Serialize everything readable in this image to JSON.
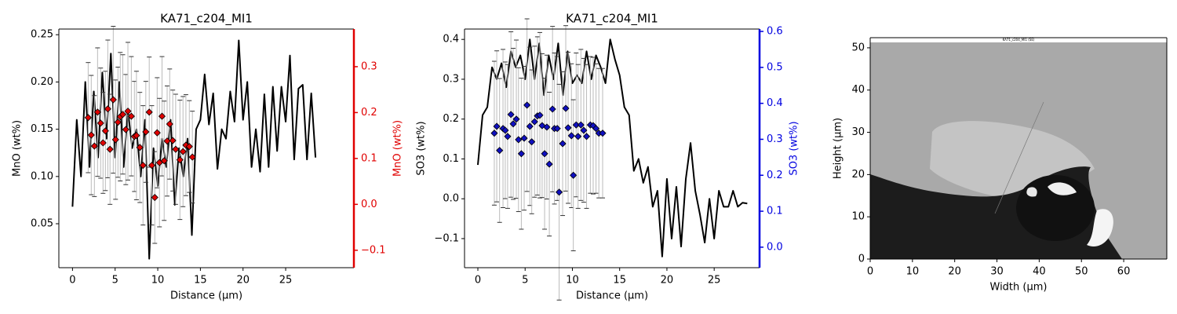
{
  "chart_data": [
    {
      "type": "line",
      "title": "KA71_c204_MI1",
      "xlabel": "Distance (µm)",
      "ylabel": "MnO (wt%)",
      "y2label": "MnO (wt%)",
      "y2_color": "#e00000",
      "xlim": [
        -1.6,
        33
      ],
      "xticks": [
        0,
        5,
        10,
        15,
        20,
        25
      ],
      "ylim": [
        0.0035,
        0.256
      ],
      "yticks": [
        0.05,
        {
          "value": 0.1,
          "label": "0.10"
        },
        0.15,
        {
          "value": 0.2,
          "label": "0.20"
        },
        0.25
      ],
      "y2lim": [
        -0.138,
        0.382
      ],
      "y2ticks": [
        {
          "value": -0.1,
          "label": "−0.1"
        },
        {
          "value": 0,
          "label": "0.0"
        },
        0.1,
        0.2,
        0.3
      ],
      "series": [
        {
          "color": "#000000",
          "x": [
            0,
            0.5,
            1,
            1.5,
            2,
            2.5,
            3,
            3.5,
            4,
            4.5,
            5,
            5.5,
            6,
            6.5,
            7,
            7.5,
            8,
            8.5,
            9,
            9.5,
            10,
            10.5,
            11,
            11.5,
            12,
            12.5,
            13,
            13.5,
            14,
            14.5,
            15,
            15.5,
            16,
            16.5,
            17,
            17.5,
            18,
            18.5,
            19,
            19.5,
            20,
            20.5,
            21,
            21.5,
            22,
            22.5,
            23,
            23.5,
            24,
            24.5,
            25,
            25.5,
            26,
            26.5,
            27,
            27.5,
            28,
            28.5
          ],
          "values": [
            0.068,
            0.16,
            0.1,
            0.2,
            0.11,
            0.19,
            0.12,
            0.21,
            0.14,
            0.23,
            0.12,
            0.2,
            0.11,
            0.17,
            0.13,
            0.15,
            0.1,
            0.16,
            0.013,
            0.13,
            0.09,
            0.14,
            0.11,
            0.16,
            0.07,
            0.13,
            0.1,
            0.14,
            0.038,
            0.15,
            0.16,
            0.208,
            0.155,
            0.188,
            0.108,
            0.15,
            0.14,
            0.19,
            0.158,
            0.244,
            0.16,
            0.2,
            0.11,
            0.15,
            0.105,
            0.187,
            0.11,
            0.195,
            0.127,
            0.195,
            0.158,
            0.228,
            0.118,
            0.193,
            0.197,
            0.118,
            0.188,
            0.12
          ]
        },
        {
          "color": "#e00000",
          "marker": "diamond",
          "axis": "y2",
          "x": [
            1.84,
            2.2,
            2.57,
            2.94,
            3.3,
            3.58,
            3.86,
            4.14,
            4.4,
            4.78,
            5.05,
            5.33,
            5.6,
            5.9,
            6.25,
            6.5,
            6.9,
            7.26,
            7.5,
            7.9,
            8.27,
            8.6,
            9.0,
            9.3,
            9.65,
            9.93,
            10.2,
            10.5,
            10.75,
            11.1,
            11.4,
            11.76,
            12.1,
            12.6,
            12.96,
            13.3,
            13.7,
            14.06
          ],
          "values": [
            0.189,
            0.151,
            0.127,
            0.201,
            0.177,
            0.134,
            0.16,
            0.208,
            0.12,
            0.228,
            0.141,
            0.179,
            0.191,
            0.196,
            0.163,
            0.203,
            0.192,
            0.148,
            0.15,
            0.124,
            0.085,
            0.158,
            0.201,
            0.085,
            0.015,
            0.156,
            0.091,
            0.192,
            0.095,
            0.138,
            0.175,
            0.139,
            0.12,
            0.097,
            0.115,
            0.129,
            0.126,
            0.103
          ],
          "errors": [
            0.12,
            0.13,
            0.11,
            0.14,
            0.12,
            0.11,
            0.13,
            0.15,
            0.12,
            0.16,
            0.13,
            0.12,
            0.14,
            0.13,
            0.12,
            0.15,
            0.13,
            0.12,
            0.14,
            0.12,
            0.13,
            0.11,
            0.12,
            0.13,
            0.1,
            0.12,
            0.14,
            0.13,
            0.13,
            0.12,
            0.12,
            0.11,
            0.12,
            0.13,
            0.12,
            0.11,
            0.1,
            0.1
          ]
        }
      ]
    },
    {
      "type": "line",
      "title": "KA71_c204_MI1",
      "xlabel": "Distance (µm)",
      "ylabel": "SO3 (wt%)",
      "y2label": "SO3 (wt%)",
      "y2_color": "#0000e0",
      "xlim": [
        -1.41,
        29.8
      ],
      "xticks": [
        0,
        5,
        10,
        15,
        20,
        25
      ],
      "ylim": [
        -0.173,
        0.426
      ],
      "yticks": [
        {
          "value": -0.1,
          "label": "−0.1"
        },
        {
          "value": 0,
          "label": "0.0"
        },
        0.1,
        0.2,
        0.3,
        0.4
      ],
      "y2lim": [
        -0.057,
        0.6066
      ],
      "y2ticks": [
        {
          "value": 0,
          "label": "0.0"
        },
        0.1,
        0.2,
        0.3,
        0.4,
        0.5,
        0.6
      ],
      "series": [
        {
          "color": "#000000",
          "x": [
            0,
            0.5,
            1,
            1.5,
            2,
            2.5,
            3,
            3.5,
            4,
            4.5,
            5,
            5.5,
            6,
            6.5,
            7,
            7.5,
            8,
            8.5,
            9,
            9.5,
            10,
            10.5,
            11,
            11.5,
            12,
            12.5,
            13,
            13.5,
            14,
            14.5,
            15,
            15.5,
            16,
            16.5,
            17,
            17.5,
            18,
            18.5,
            19,
            19.5,
            20,
            20.5,
            21,
            21.5,
            22,
            22.5,
            23,
            23.5,
            24,
            24.5,
            25,
            25.5,
            26,
            26.5,
            27,
            27.5,
            28,
            28.5
          ],
          "values": [
            0.085,
            0.21,
            0.23,
            0.33,
            0.3,
            0.34,
            0.28,
            0.37,
            0.33,
            0.36,
            0.3,
            0.4,
            0.3,
            0.39,
            0.26,
            0.36,
            0.3,
            0.39,
            0.26,
            0.37,
            0.29,
            0.31,
            0.29,
            0.37,
            0.3,
            0.36,
            0.33,
            0.29,
            0.4,
            0.35,
            0.31,
            0.23,
            0.21,
            0.07,
            0.1,
            0.04,
            0.08,
            -0.02,
            0.02,
            -0.145,
            0.05,
            -0.1,
            0.03,
            -0.12,
            0.05,
            0.14,
            0.02,
            -0.04,
            -0.11,
            0.0,
            -0.1,
            0.02,
            -0.02,
            -0.02,
            0.02,
            -0.02,
            -0.01,
            -0.012
          ]
        },
        {
          "color": "#1010c0",
          "marker": "diamond",
          "axis": "y2",
          "x": [
            1.74,
            2.0,
            2.3,
            2.66,
            2.9,
            3.15,
            3.5,
            3.74,
            4.07,
            4.3,
            4.6,
            4.9,
            5.2,
            5.5,
            5.7,
            6.0,
            6.3,
            6.56,
            6.8,
            7.06,
            7.3,
            7.56,
            7.9,
            8.1,
            8.4,
            8.6,
            8.97,
            9.3,
            9.55,
            9.9,
            10.1,
            10.4,
            10.6,
            10.9,
            11.2,
            11.5,
            11.9,
            12.2,
            12.5,
            12.8,
            13.2
          ],
          "values": [
            0.317,
            0.336,
            0.269,
            0.33,
            0.325,
            0.308,
            0.369,
            0.343,
            0.356,
            0.299,
            0.26,
            0.303,
            0.395,
            0.336,
            0.293,
            0.349,
            0.365,
            0.367,
            0.338,
            0.26,
            0.334,
            0.231,
            0.384,
            0.33,
            0.33,
            0.153,
            0.288,
            0.386,
            0.332,
            0.31,
            0.2,
            0.34,
            0.308,
            0.34,
            0.325,
            0.308,
            0.34,
            0.338,
            0.33,
            0.317,
            0.317
          ],
          "errors": [
            0.2,
            0.21,
            0.2,
            0.22,
            0.19,
            0.2,
            0.23,
            0.21,
            0.22,
            0.2,
            0.21,
            0.2,
            0.24,
            0.22,
            0.2,
            0.21,
            0.22,
            0.23,
            0.2,
            0.21,
            0.2,
            0.2,
            0.23,
            0.21,
            0.2,
            0.3,
            0.2,
            0.23,
            0.21,
            0.2,
            0.21,
            0.2,
            0.2,
            0.21,
            0.2,
            0.2,
            0.19,
            0.19,
            0.18,
            0.18,
            0.18
          ]
        }
      ]
    },
    {
      "type": "image",
      "image_label": "KA71_c204_MI1 (SE)",
      "xlabel": "Width (µm)",
      "ylabel": "Height (µm)",
      "xlim": [
        0,
        70.2
      ],
      "xticks": [
        0,
        10,
        20,
        30,
        40,
        50,
        60
      ],
      "ylim": [
        0,
        52.4
      ],
      "yticks": [
        0,
        10,
        20,
        30,
        40,
        50
      ]
    }
  ]
}
